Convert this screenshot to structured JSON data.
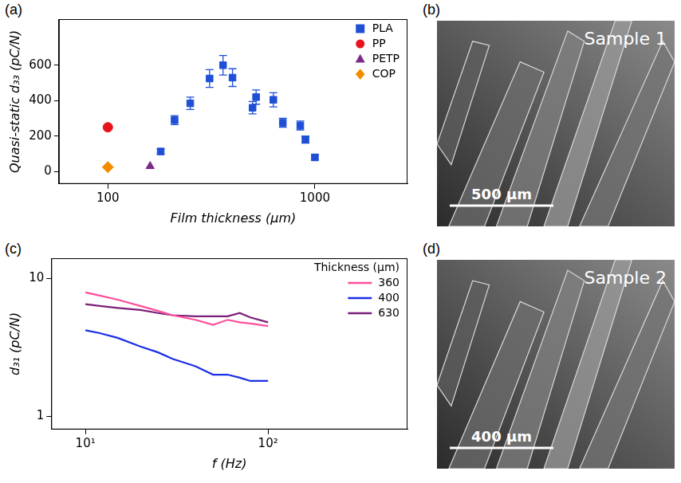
{
  "chart_data": [
    {
      "type": "scatter",
      "panel": "(a)",
      "x_label": "Film thickness (µm)",
      "y_label": "Quasi-static d₃₃ (pC/N)",
      "log": "x",
      "grid": false,
      "legend": "top-right",
      "xlim": [
        58,
        2800
      ],
      "xticks": [
        100,
        1000
      ],
      "ylim": [
        -70,
        860
      ],
      "yticks": [
        0,
        200,
        400,
        600
      ],
      "series": [
        {
          "name": "PLA",
          "color": "#1f4fd6",
          "marker": "square",
          "x": [
            180,
            210,
            250,
            310,
            360,
            400,
            500,
            520,
            630,
            700,
            850,
            900,
            1000
          ],
          "values": [
            113,
            290,
            385,
            525,
            600,
            530,
            360,
            420,
            405,
            275,
            260,
            180,
            80
          ],
          "errors": [
            15,
            25,
            35,
            50,
            55,
            50,
            35,
            40,
            40,
            25,
            25,
            20,
            15
          ]
        },
        {
          "name": "PP",
          "color": "#e8141c",
          "marker": "circle",
          "x": [
            100
          ],
          "values": [
            250
          ]
        },
        {
          "name": "PETP",
          "color": "#7b2a8a",
          "marker": "triangle",
          "x": [
            160
          ],
          "values": [
            30
          ]
        },
        {
          "name": "COP",
          "color": "#f28c00",
          "marker": "diamond",
          "x": [
            100
          ],
          "values": [
            25
          ]
        }
      ]
    },
    {
      "type": "line",
      "panel": "(c)",
      "x_label": "f (Hz)",
      "y_label": "d₃₁ (pC/N)",
      "log": true,
      "grid": false,
      "legend": "top-right",
      "legend_title": "Thickness (µm)",
      "xlim": [
        6.5,
        580
      ],
      "xticks": [
        {
          "value": 10,
          "label": "10¹"
        },
        {
          "value": 100,
          "label": "10²"
        }
      ],
      "ylim": [
        0.8,
        14
      ],
      "yticks": [
        1,
        10
      ],
      "x": [
        10,
        12,
        15,
        20,
        25,
        30,
        40,
        50,
        60,
        70,
        80,
        100
      ],
      "series": [
        {
          "name": "360",
          "color": "#ff4f9b",
          "line_style": "solid",
          "values": [
            7.9,
            7.5,
            7.0,
            6.3,
            5.8,
            5.4,
            5.0,
            4.6,
            5.0,
            4.8,
            4.7,
            4.5
          ]
        },
        {
          "name": "400",
          "color": "#1a2ee6",
          "line_style": "solid",
          "values": [
            4.2,
            4.0,
            3.7,
            3.2,
            2.9,
            2.6,
            2.3,
            2.0,
            2.0,
            1.9,
            1.8,
            1.8
          ]
        },
        {
          "name": "630",
          "color": "#7b1f78",
          "line_style": "solid",
          "values": [
            6.5,
            6.3,
            6.1,
            5.9,
            5.6,
            5.4,
            5.3,
            5.3,
            5.3,
            5.6,
            5.2,
            4.8
          ]
        }
      ]
    }
  ],
  "images": [
    {
      "panel": "(b)",
      "label": "Sample 1",
      "scale_bar": "500 µm"
    },
    {
      "panel": "(d)",
      "label": "Sample 2",
      "scale_bar": "400 µm"
    }
  ]
}
